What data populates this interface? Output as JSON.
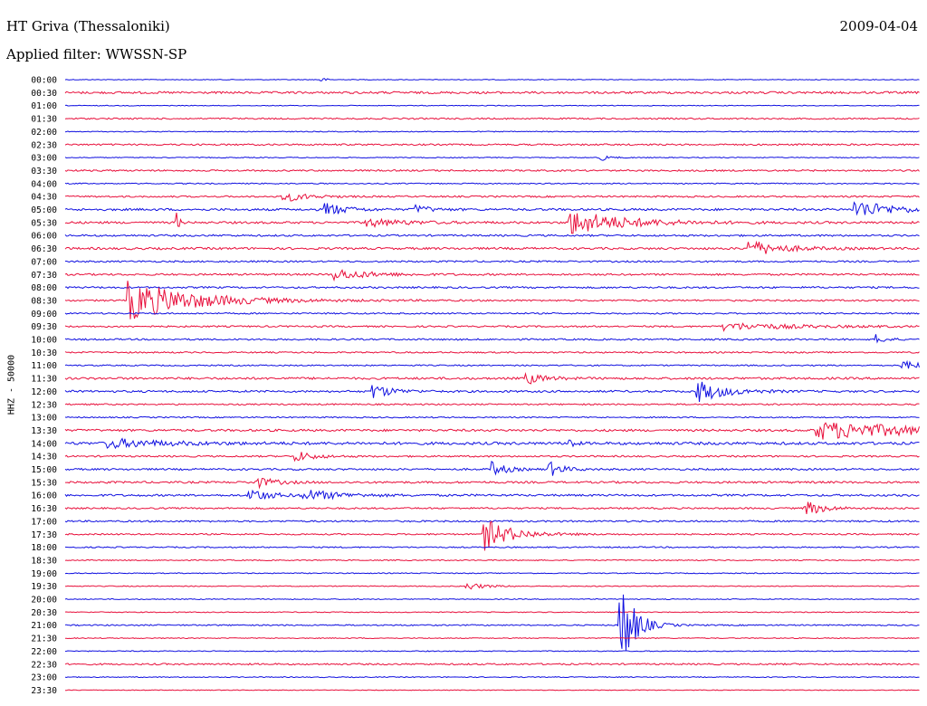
{
  "header": {
    "station": "HT Griva (Thessaloniki)",
    "date": "2009-04-04",
    "filter": "Applied filter: WWSSN-SP"
  },
  "chart_data": {
    "type": "line",
    "title": "HT Griva (Thessaloniki)",
    "ylabel": "HHZ - 50000",
    "trace_colors": [
      "#1010e0",
      "#e8103c"
    ],
    "y_tick_labels": [
      "00:00",
      "00:30",
      "01:00",
      "01:30",
      "02:00",
      "02:30",
      "03:00",
      "03:30",
      "04:00",
      "04:30",
      "05:00",
      "05:30",
      "06:00",
      "06:30",
      "07:00",
      "07:30",
      "08:00",
      "08:30",
      "09:00",
      "09:30",
      "10:00",
      "10:30",
      "11:00",
      "11:30",
      "12:00",
      "12:30",
      "13:00",
      "13:30",
      "14:00",
      "14:30",
      "15:00",
      "15:30",
      "16:00",
      "16:30",
      "17:00",
      "17:30",
      "18:00",
      "18:30",
      "19:00",
      "19:30",
      "20:00",
      "20:30",
      "21:00",
      "21:30",
      "22:00",
      "22:30",
      "23:00",
      "23:30"
    ],
    "x_range": [
      0,
      1
    ],
    "baseline_noise": [
      0.4,
      1.2,
      0.4,
      0.8,
      0.5,
      0.9,
      0.5,
      0.9,
      0.6,
      0.9,
      1.2,
      1.2,
      1.0,
      1.2,
      0.9,
      1.0,
      1.0,
      0.9,
      0.8,
      0.9,
      0.9,
      0.8,
      0.7,
      1.2,
      1.1,
      0.8,
      0.7,
      1.2,
      1.5,
      0.9,
      1.0,
      1.1,
      1.1,
      0.9,
      0.9,
      0.8,
      0.7,
      0.6,
      0.5,
      0.5,
      0.5,
      0.5,
      0.7,
      0.5,
      0.5,
      0.9,
      0.5,
      0.4
    ],
    "events": [
      {
        "trace": "00:00",
        "t": 0.3,
        "amp": 3,
        "dur": 0.004
      },
      {
        "trace": "03:00",
        "t": 0.625,
        "amp": 4,
        "dur": 0.01
      },
      {
        "trace": "04:30",
        "t": 0.255,
        "amp": 6,
        "dur": 0.025
      },
      {
        "trace": "05:00",
        "t": 0.305,
        "amp": 8,
        "dur": 0.02
      },
      {
        "trace": "05:00",
        "t": 0.41,
        "amp": 5,
        "dur": 0.015
      },
      {
        "trace": "05:00",
        "t": 0.925,
        "amp": 10,
        "dur": 0.04
      },
      {
        "trace": "05:30",
        "t": 0.13,
        "amp": 12,
        "dur": 0.003
      },
      {
        "trace": "05:30",
        "t": 0.35,
        "amp": 5,
        "dur": 0.04
      },
      {
        "trace": "05:30",
        "t": 0.59,
        "amp": 14,
        "dur": 0.06
      },
      {
        "trace": "06:30",
        "t": 0.8,
        "amp": 9,
        "dur": 0.035
      },
      {
        "trace": "07:30",
        "t": 0.315,
        "amp": 6,
        "dur": 0.04
      },
      {
        "trace": "08:30",
        "t": 0.075,
        "amp": 22,
        "dur": 0.07
      },
      {
        "trace": "09:30",
        "t": 0.77,
        "amp": 4,
        "dur": 0.08
      },
      {
        "trace": "10:00",
        "t": 0.95,
        "amp": 5,
        "dur": 0.01
      },
      {
        "trace": "11:00",
        "t": 0.98,
        "amp": 6,
        "dur": 0.02
      },
      {
        "trace": "11:30",
        "t": 0.54,
        "amp": 6,
        "dur": 0.02
      },
      {
        "trace": "12:00",
        "t": 0.36,
        "amp": 8,
        "dur": 0.02
      },
      {
        "trace": "12:00",
        "t": 0.74,
        "amp": 12,
        "dur": 0.03
      },
      {
        "trace": "13:30",
        "t": 0.88,
        "amp": 10,
        "dur": 0.12
      },
      {
        "trace": "14:00",
        "t": 0.05,
        "amp": 5,
        "dur": 0.06
      },
      {
        "trace": "14:00",
        "t": 0.59,
        "amp": 9,
        "dur": 0.004
      },
      {
        "trace": "14:30",
        "t": 0.27,
        "amp": 6,
        "dur": 0.02
      },
      {
        "trace": "15:00",
        "t": 0.5,
        "amp": 8,
        "dur": 0.015
      },
      {
        "trace": "15:00",
        "t": 0.565,
        "amp": 9,
        "dur": 0.015
      },
      {
        "trace": "15:30",
        "t": 0.22,
        "amp": 7,
        "dur": 0.02
      },
      {
        "trace": "16:00",
        "t": 0.215,
        "amp": 9,
        "dur": 0.02
      },
      {
        "trace": "16:00",
        "t": 0.28,
        "amp": 6,
        "dur": 0.04
      },
      {
        "trace": "16:30",
        "t": 0.865,
        "amp": 9,
        "dur": 0.02
      },
      {
        "trace": "17:30",
        "t": 0.49,
        "amp": 18,
        "dur": 0.03
      },
      {
        "trace": "19:30",
        "t": 0.47,
        "amp": 4,
        "dur": 0.02
      },
      {
        "trace": "21:00",
        "t": 0.65,
        "amp": 55,
        "dur": 0.015
      }
    ]
  }
}
